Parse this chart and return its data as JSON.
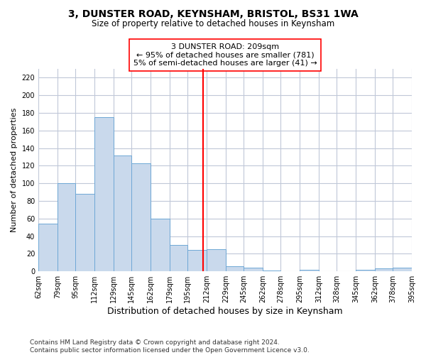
{
  "title": "3, DUNSTER ROAD, KEYNSHAM, BRISTOL, BS31 1WA",
  "subtitle": "Size of property relative to detached houses in Keynsham",
  "xlabel": "Distribution of detached houses by size in Keynsham",
  "ylabel": "Number of detached properties",
  "bar_color": "#c9d9ec",
  "bar_edge_color": "#6fa8d6",
  "background_color": "#ffffff",
  "grid_color": "#c0c8d8",
  "vline_x": 209,
  "vline_color": "red",
  "annotation_text": "3 DUNSTER ROAD: 209sqm\n← 95% of detached houses are smaller (781)\n5% of semi-detached houses are larger (41) →",
  "annotation_box_color": "white",
  "annotation_box_edge_color": "red",
  "bin_edges": [
    62,
    79,
    95,
    112,
    129,
    145,
    162,
    179,
    195,
    212,
    229,
    245,
    262,
    278,
    295,
    312,
    328,
    345,
    362,
    378,
    395
  ],
  "bar_heights": [
    54,
    100,
    88,
    175,
    132,
    123,
    60,
    30,
    24,
    25,
    6,
    4,
    1,
    0,
    2,
    0,
    0,
    2,
    3,
    4
  ],
  "ylim": [
    0,
    230
  ],
  "yticks": [
    0,
    20,
    40,
    60,
    80,
    100,
    120,
    140,
    160,
    180,
    200,
    220
  ],
  "footer_text": "Contains HM Land Registry data © Crown copyright and database right 2024.\nContains public sector information licensed under the Open Government Licence v3.0.",
  "tick_labels": [
    "62sqm",
    "79sqm",
    "95sqm",
    "112sqm",
    "129sqm",
    "145sqm",
    "162sqm",
    "179sqm",
    "195sqm",
    "212sqm",
    "229sqm",
    "245sqm",
    "262sqm",
    "278sqm",
    "295sqm",
    "312sqm",
    "328sqm",
    "345sqm",
    "362sqm",
    "378sqm",
    "395sqm"
  ]
}
